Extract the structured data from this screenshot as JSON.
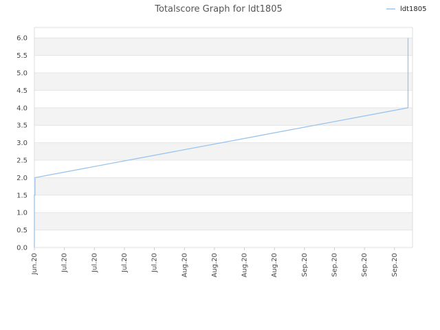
{
  "chart_data": {
    "type": "line",
    "title": "Totalscore Graph for ldt1805",
    "xlabel": "",
    "ylabel": "",
    "ylim": [
      0,
      6.3
    ],
    "y_ticks": [
      "0.0",
      "0.5",
      "1.0",
      "1.5",
      "2.0",
      "2.5",
      "3.0",
      "3.5",
      "4.0",
      "4.5",
      "5.0",
      "5.5",
      "6.0"
    ],
    "x_ticks": [
      "Jun.20",
      "Jul.20",
      "Jul.20",
      "Jul.20",
      "Jul.20",
      "Aug.20",
      "Aug.20",
      "Aug.20",
      "Aug.20",
      "Sep.20",
      "Sep.20",
      "Sep.20",
      "Sep.20"
    ],
    "x_tick_positions": [
      0,
      1,
      2,
      3,
      4,
      5,
      6,
      7,
      8,
      9,
      10,
      11,
      12
    ],
    "x_range": [
      0,
      12.6
    ],
    "grid": "horizontal bands",
    "legend_position": "top-right",
    "series": [
      {
        "name": "ldt1805",
        "color": "#99c4ec",
        "points": [
          {
            "x": 0,
            "y": 0
          },
          {
            "x": 0,
            "y": 1.5
          },
          {
            "x": 0.02,
            "y": 1.5
          },
          {
            "x": 0.02,
            "y": 2.0
          },
          {
            "x": 12.45,
            "y": 4.0
          },
          {
            "x": 12.45,
            "y": 6.0
          }
        ]
      }
    ]
  }
}
